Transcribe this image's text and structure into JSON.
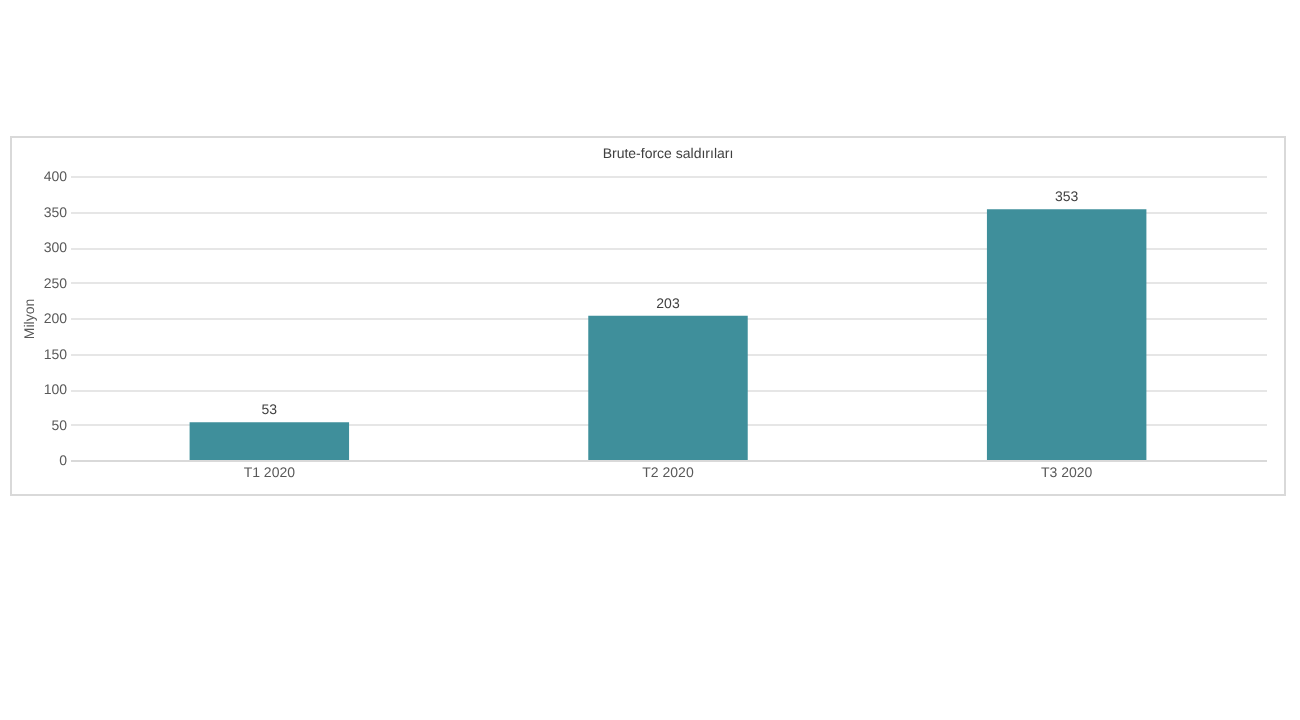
{
  "chart_data": {
    "type": "bar",
    "title": "Brute-force saldırıları",
    "ylabel": "Milyon",
    "categories": [
      "T1 2020",
      "T2 2020",
      "T3 2020"
    ],
    "values": [
      53,
      203,
      353
    ],
    "color": "#3f8f9b",
    "ylim": [
      0,
      400
    ],
    "yticks": [
      0,
      50,
      100,
      150,
      200,
      250,
      300,
      350,
      400
    ],
    "grid": "y",
    "data_labels": true
  }
}
